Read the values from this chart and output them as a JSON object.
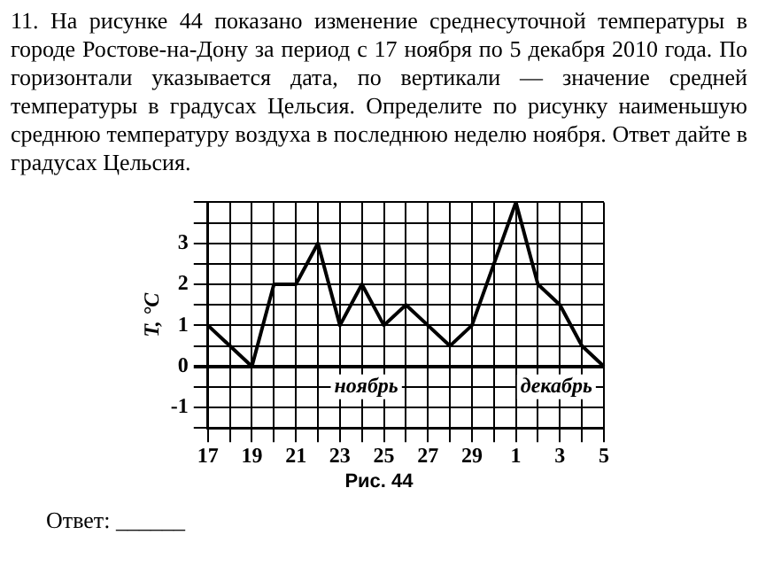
{
  "chart_data": {
    "type": "line",
    "title": "11. На рисунке 44 показано изменение среднесуточной температуры в городе Ростове-на-Дону за период с 17 ноября по 5 декабря 2010 года. По горизонтали указывается дата, по вертикали — значение средней температуры в градусах Цельсия. Определите по рисунку наименьшую среднюю температуру воздуха в последнюю неделю ноября. Ответ дайте в градусах Цельсия.",
    "ylabel": "T, °C",
    "categories": [
      "17",
      null,
      "19",
      null,
      "21",
      null,
      "23",
      null,
      "25",
      null,
      "27",
      null,
      "29",
      null,
      "1",
      null,
      "3",
      null,
      "5"
    ],
    "series": [
      {
        "color": "#000000",
        "values": [
          1,
          0.5,
          0,
          2,
          2,
          3,
          1,
          2,
          1,
          1.5,
          1,
          0.5,
          1,
          2.5,
          4,
          2,
          1.5,
          0.5,
          0
        ]
      }
    ],
    "ylim": [
      -1.5,
      4
    ],
    "yticks": [
      {
        "value": -1.5,
        "label": null
      },
      -1,
      {
        "value": -0.5,
        "label": null
      },
      0,
      {
        "value": 0.5,
        "label": null
      },
      1,
      {
        "value": 1.5,
        "label": null
      },
      2,
      {
        "value": 2.5,
        "label": null
      },
      3,
      {
        "value": 3.5,
        "label": null
      },
      {
        "value": 4,
        "label": null
      }
    ],
    "annotations": [
      "ноябрь",
      "декабрь",
      "Рис. 44",
      "Ответ: ______"
    ],
    "grid": true,
    "legend": false,
    "marker": "none",
    "line_style": "solid"
  }
}
